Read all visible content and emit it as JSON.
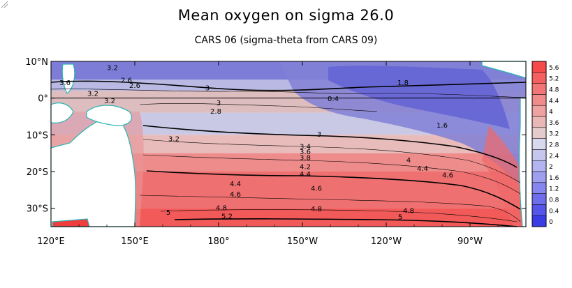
{
  "title": "Mean oxygen on sigma 26.0",
  "subtitle": "CARS 06 (sigma-theta from CARS 09)",
  "map": {
    "lon_range": [
      120,
      290
    ],
    "lat_range": [
      -35,
      10
    ],
    "lat_ticks": [
      {
        "value": 10,
        "label": "10°N"
      },
      {
        "value": 0,
        "label": "0°"
      },
      {
        "value": -10,
        "label": "10°S"
      },
      {
        "value": -20,
        "label": "20°S"
      },
      {
        "value": -30,
        "label": "30°S"
      }
    ],
    "lon_ticks": [
      {
        "value": 120,
        "label": "120°E"
      },
      {
        "value": 150,
        "label": "150°E"
      },
      {
        "value": 180,
        "label": "180°"
      },
      {
        "value": 210,
        "label": "150°W"
      },
      {
        "value": 240,
        "label": "120°W"
      },
      {
        "value": 270,
        "label": "90°W"
      }
    ],
    "bands": [
      {
        "lat_top": 10,
        "lat_bottom": 5,
        "color": "#7d7dd8"
      },
      {
        "lat_top": 5,
        "lat_bottom": 2,
        "color": "#b9b9e4"
      },
      {
        "lat_top": 2,
        "lat_bottom": -4,
        "color": "#ddbdbd"
      },
      {
        "lat_top": -4,
        "lat_bottom": -10,
        "color": "#c9c9e6"
      },
      {
        "lat_top": -10,
        "lat_bottom": -15,
        "color": "#e9bcbc"
      },
      {
        "lat_top": -15,
        "lat_bottom": -20,
        "color": "#ee8c8c"
      },
      {
        "lat_top": -20,
        "lat_bottom": -30,
        "color": "#ef7070"
      },
      {
        "lat_top": -30,
        "lat_bottom": -35,
        "color": "#f25a5a"
      }
    ],
    "contour_labels": [
      {
        "text": "3.2",
        "lon": 142,
        "lat": 7.6
      },
      {
        "text": "2.6",
        "lon": 147,
        "lat": 4.2
      },
      {
        "text": "3",
        "lon": 176,
        "lat": 2.1
      },
      {
        "text": "3",
        "lon": 180,
        "lat": -2.0
      },
      {
        "text": "2.8",
        "lon": 179,
        "lat": -4.2
      },
      {
        "text": "3.2",
        "lon": 135,
        "lat": 0.6
      },
      {
        "text": "3.6",
        "lon": 125,
        "lat": 3.5
      },
      {
        "text": "3.2",
        "lon": 141,
        "lat": -1.4
      },
      {
        "text": "2.6",
        "lon": 150,
        "lat": 2.8
      },
      {
        "text": "1.8",
        "lon": 246,
        "lat": 3.5
      },
      {
        "text": "0.4",
        "lon": 221,
        "lat": -0.8
      },
      {
        "text": "1.6",
        "lon": 260,
        "lat": -8.0
      },
      {
        "text": "3",
        "lon": 216,
        "lat": -10.5
      },
      {
        "text": "3.2",
        "lon": 164,
        "lat": -11.7
      },
      {
        "text": "3.4",
        "lon": 211,
        "lat": -13.8
      },
      {
        "text": "3.6",
        "lon": 211,
        "lat": -15.3
      },
      {
        "text": "3.8",
        "lon": 211,
        "lat": -16.9
      },
      {
        "text": "4",
        "lon": 248,
        "lat": -17.5
      },
      {
        "text": "4.2",
        "lon": 211,
        "lat": -19.3
      },
      {
        "text": "4.4",
        "lon": 211,
        "lat": -21.3
      },
      {
        "text": "4.4",
        "lon": 253,
        "lat": -19.8
      },
      {
        "text": "4.6",
        "lon": 262,
        "lat": -21.6
      },
      {
        "text": "4.4",
        "lon": 186,
        "lat": -24.0
      },
      {
        "text": "4.6",
        "lon": 186,
        "lat": -26.8
      },
      {
        "text": "4.6",
        "lon": 215,
        "lat": -25.2
      },
      {
        "text": "4.8",
        "lon": 181,
        "lat": -30.5
      },
      {
        "text": "4.8",
        "lon": 215,
        "lat": -30.8
      },
      {
        "text": "4.8",
        "lon": 248,
        "lat": -31.3
      },
      {
        "text": "5",
        "lon": 162,
        "lat": -31.8
      },
      {
        "text": "5.2",
        "lon": 183,
        "lat": -32.8
      },
      {
        "text": "5",
        "lon": 245,
        "lat": -33.0
      }
    ]
  },
  "colorbar": {
    "labels": [
      "0",
      "0.4",
      "0.8",
      "1.2",
      "1.6",
      "2",
      "2.4",
      "2.8",
      "3.2",
      "3.6",
      "4",
      "4.4",
      "4.8",
      "5.2",
      "5.6"
    ],
    "colors": [
      "#3c3ce6",
      "#5555e9",
      "#6e6eec",
      "#8686ee",
      "#9f9ff0",
      "#b4b4f0",
      "#c6c6ef",
      "#d8d8ee",
      "#e4cccc",
      "#eab7b7",
      "#eea2a2",
      "#f08c8c",
      "#f27676",
      "#f46060",
      "#f64a4a"
    ]
  }
}
